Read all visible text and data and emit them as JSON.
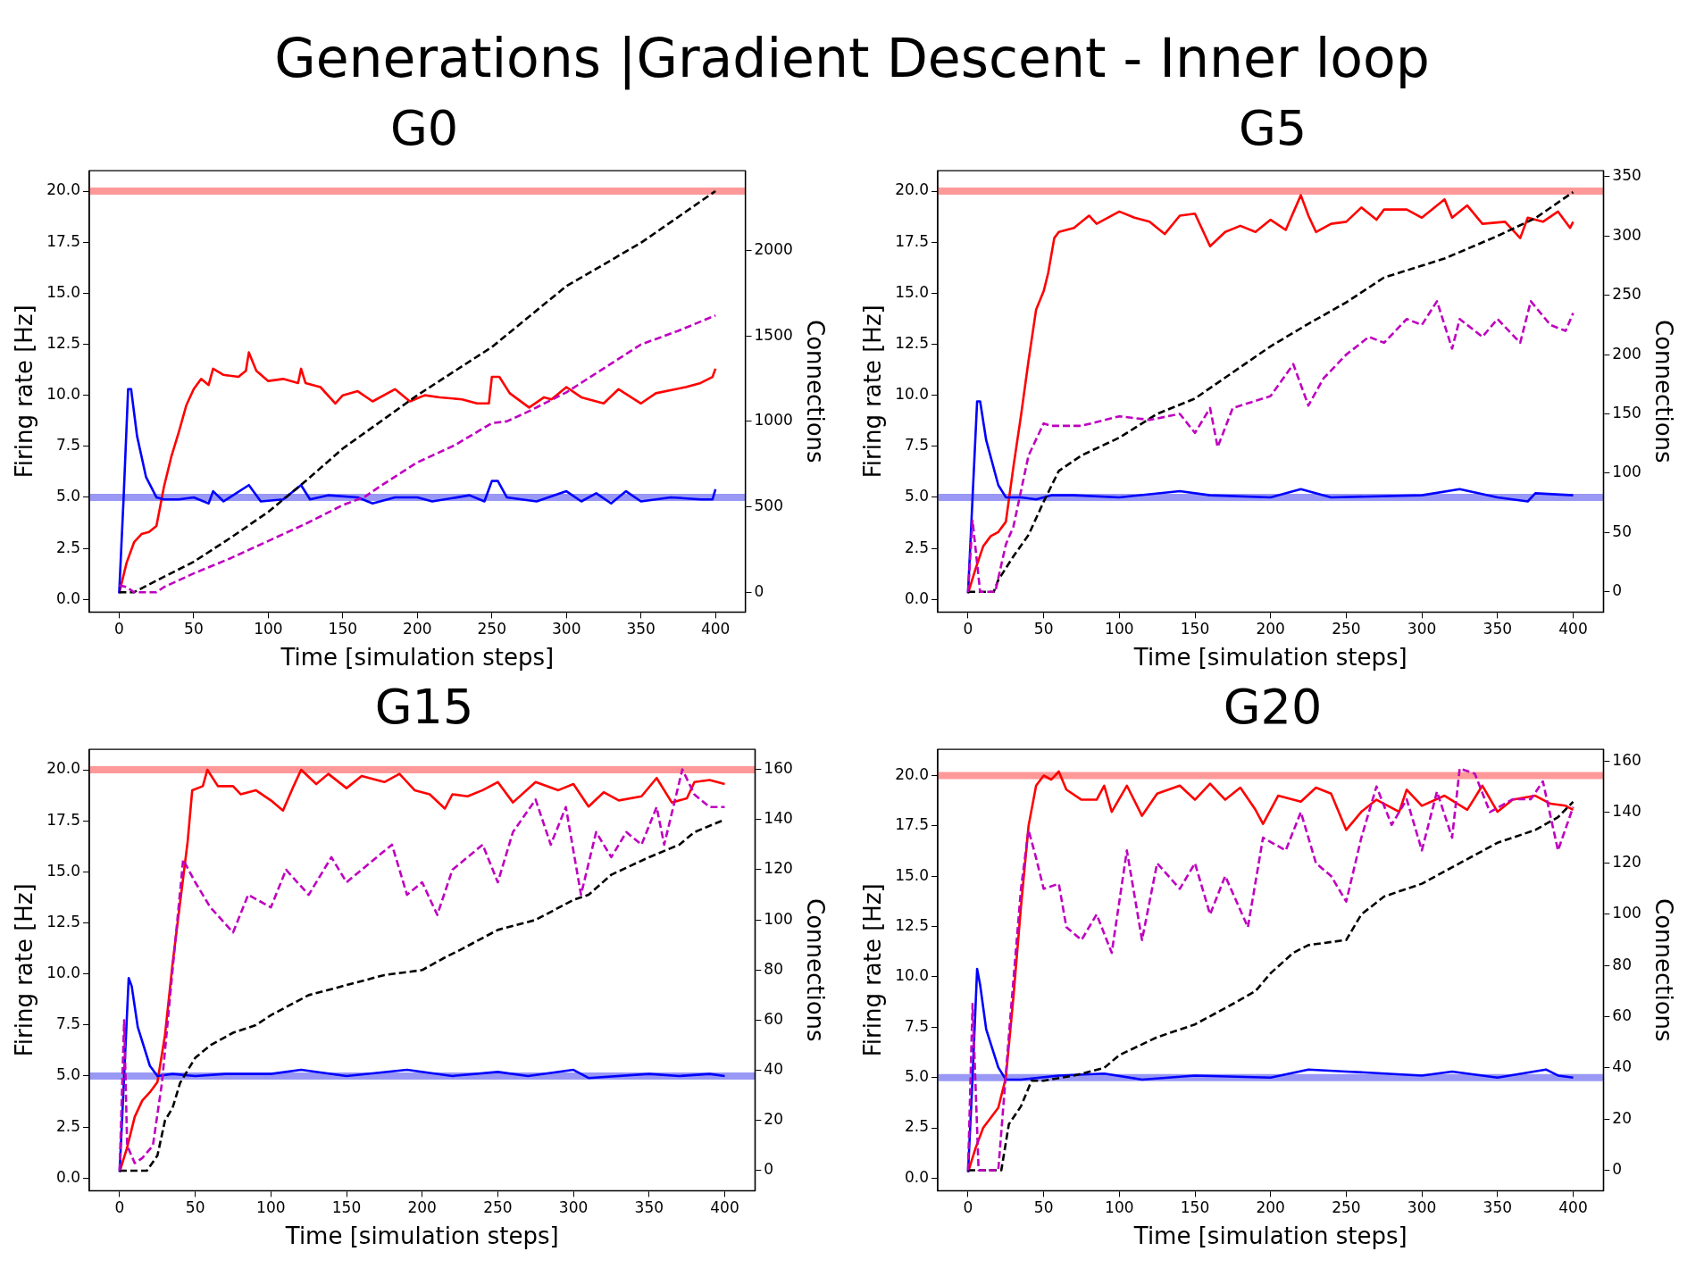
{
  "chart_data": [
    {
      "type": "line",
      "title": "Generations |Gradient Descent - Inner loop",
      "subtitle": "G0",
      "xlabel": "Time [simulation steps]",
      "ylabel": "Firing rate [Hz]",
      "y2label": "Connections",
      "xlim": [
        -20,
        420
      ],
      "xticks": [
        0,
        50,
        100,
        150,
        200,
        250,
        300,
        350,
        400
      ],
      "ylim": [
        -0.62,
        21.0
      ],
      "yticks": [
        {
          "value": 0,
          "label": "0.0"
        },
        {
          "value": 2.5,
          "label": "2.5"
        },
        {
          "value": 5,
          "label": "5.0"
        },
        {
          "value": 7.5,
          "label": "7.5"
        },
        {
          "value": 10,
          "label": "10.0"
        },
        {
          "value": 12.5,
          "label": "12.5"
        },
        {
          "value": 15,
          "label": "15.0"
        },
        {
          "value": 17.5,
          "label": "17.5"
        },
        {
          "value": 20,
          "label": "20.0"
        }
      ],
      "y2lim": [
        -116,
        2467
      ],
      "y2ticks": [
        0,
        500,
        1000,
        1500,
        2000
      ],
      "grid": false,
      "legend": false,
      "marker": "none",
      "ref_lines": [
        {
          "axis": "y",
          "value": 20,
          "color": "#ff9999"
        },
        {
          "axis": "y",
          "value": 5,
          "color": "#9999f5"
        }
      ],
      "series": [
        {
          "color": "#ff0000",
          "line_style": "solid",
          "x": [
            0,
            5,
            10,
            15,
            20,
            25,
            30,
            35,
            40,
            45,
            50,
            55,
            60,
            63,
            70,
            80,
            85,
            87,
            92,
            100,
            110,
            120,
            122,
            125,
            135,
            145,
            150,
            160,
            170,
            185,
            195,
            205,
            215,
            230,
            240,
            248,
            250,
            255,
            262,
            275,
            285,
            290,
            300,
            310,
            325,
            335,
            350,
            360,
            380,
            390,
            398,
            400
          ],
          "values": [
            0.3,
            1.8,
            2.8,
            3.2,
            3.3,
            3.6,
            5.5,
            7.0,
            8.2,
            9.5,
            10.3,
            10.8,
            10.5,
            11.3,
            11.0,
            10.9,
            11.2,
            12.1,
            11.2,
            10.7,
            10.8,
            10.6,
            11.3,
            10.6,
            10.4,
            9.6,
            10.0,
            10.2,
            9.7,
            10.3,
            9.7,
            10.0,
            9.9,
            9.8,
            9.6,
            9.6,
            10.9,
            10.9,
            10.1,
            9.4,
            9.9,
            9.8,
            10.4,
            9.9,
            9.6,
            10.3,
            9.6,
            10.1,
            10.4,
            10.6,
            10.9,
            11.3
          ]
        },
        {
          "color": "#0000ff",
          "line_style": "solid",
          "x": [
            0,
            3,
            6,
            8,
            12,
            18,
            25,
            30,
            40,
            50,
            60,
            63,
            70,
            87,
            95,
            110,
            122,
            128,
            140,
            160,
            170,
            185,
            200,
            210,
            235,
            245,
            250,
            254,
            260,
            280,
            300,
            310,
            320,
            330,
            340,
            350,
            370,
            390,
            398,
            400
          ],
          "values": [
            0.3,
            5.0,
            10.3,
            10.3,
            8.0,
            6.0,
            5.0,
            4.9,
            4.9,
            5.0,
            4.7,
            5.3,
            4.8,
            5.6,
            4.8,
            4.9,
            5.6,
            4.9,
            5.1,
            5.0,
            4.7,
            5.0,
            5.0,
            4.8,
            5.1,
            4.8,
            5.8,
            5.8,
            5.0,
            4.8,
            5.3,
            4.8,
            5.2,
            4.7,
            5.3,
            4.8,
            5.0,
            4.9,
            4.9,
            5.4
          ]
        },
        {
          "color": "#000000",
          "line_style": "dashed",
          "axis": "y2",
          "x": [
            0,
            10,
            25,
            50,
            75,
            100,
            125,
            150,
            200,
            250,
            300,
            350,
            400
          ],
          "values": [
            0,
            0,
            68,
            178,
            320,
            470,
            650,
            841,
            1153,
            1435,
            1792,
            2045,
            2348
          ]
        },
        {
          "color": "#bf00bf",
          "line_style": "dashed",
          "axis": "y2",
          "x": [
            0,
            5,
            10,
            25,
            30,
            50,
            75,
            100,
            125,
            150,
            165,
            175,
            200,
            225,
            250,
            260,
            275,
            300,
            325,
            350,
            375,
            400
          ],
          "values": [
            40,
            30,
            0,
            0,
            30,
            110,
            200,
            300,
            400,
            510,
            560,
            620,
            760,
            860,
            990,
            1000,
            1060,
            1170,
            1310,
            1450,
            1530,
            1620
          ]
        }
      ]
    },
    {
      "type": "line",
      "title": "G5",
      "xlabel": "Time [simulation steps]",
      "ylabel": "Firing rate [Hz]",
      "y2label": "Connections",
      "xlim": [
        -20,
        420
      ],
      "xticks": [
        0,
        50,
        100,
        150,
        200,
        250,
        300,
        350,
        400
      ],
      "ylim": [
        -0.62,
        21.0
      ],
      "yticks": [
        {
          "value": 0,
          "label": "0.0"
        },
        {
          "value": 2.5,
          "label": "2.5"
        },
        {
          "value": 5,
          "label": "5.0"
        },
        {
          "value": 7.5,
          "label": "7.5"
        },
        {
          "value": 10,
          "label": "10.0"
        },
        {
          "value": 12.5,
          "label": "12.5"
        },
        {
          "value": 15,
          "label": "15.0"
        },
        {
          "value": 17.5,
          "label": "17.5"
        },
        {
          "value": 20,
          "label": "20.0"
        }
      ],
      "y2lim": [
        -17,
        355
      ],
      "y2ticks": [
        0,
        50,
        100,
        150,
        200,
        250,
        300,
        350
      ],
      "grid": false,
      "legend": false,
      "marker": "none",
      "ref_lines": [
        {
          "axis": "y",
          "value": 20,
          "color": "#ff9999"
        },
        {
          "axis": "y",
          "value": 5,
          "color": "#9999f5"
        }
      ],
      "series": [
        {
          "color": "#ff0000",
          "line_style": "solid",
          "x": [
            0,
            5,
            10,
            15,
            20,
            25,
            30,
            35,
            40,
            45,
            50,
            53,
            57,
            60,
            70,
            80,
            85,
            100,
            110,
            120,
            130,
            140,
            150,
            160,
            170,
            180,
            190,
            200,
            210,
            220,
            225,
            230,
            240,
            250,
            260,
            270,
            275,
            290,
            300,
            315,
            320,
            330,
            340,
            355,
            365,
            370,
            380,
            390,
            398,
            400
          ],
          "values": [
            0.3,
            1.5,
            2.6,
            3.1,
            3.3,
            3.8,
            6.5,
            9.0,
            11.7,
            14.2,
            15.1,
            16.0,
            17.7,
            18.0,
            18.2,
            18.8,
            18.4,
            19.0,
            18.7,
            18.5,
            17.9,
            18.8,
            18.9,
            17.3,
            18.0,
            18.3,
            18.0,
            18.6,
            18.1,
            19.8,
            18.8,
            18.0,
            18.4,
            18.5,
            19.2,
            18.6,
            19.1,
            19.1,
            18.7,
            19.6,
            18.7,
            19.3,
            18.4,
            18.5,
            17.7,
            18.7,
            18.5,
            19.0,
            18.2,
            18.5
          ]
        },
        {
          "color": "#0000ff",
          "line_style": "solid",
          "x": [
            0,
            3,
            6,
            8,
            12,
            20,
            25,
            35,
            45,
            55,
            70,
            100,
            140,
            160,
            200,
            220,
            240,
            300,
            325,
            350,
            370,
            375,
            400
          ],
          "values": [
            0.3,
            5.0,
            9.7,
            9.7,
            7.8,
            5.6,
            5.0,
            5.0,
            4.9,
            5.1,
            5.1,
            5.0,
            5.3,
            5.1,
            5.0,
            5.4,
            5.0,
            5.1,
            5.4,
            5.0,
            4.8,
            5.2,
            5.1
          ]
        },
        {
          "color": "#000000",
          "line_style": "dashed",
          "axis": "y2",
          "x": [
            0,
            17,
            20,
            30,
            40,
            50,
            60,
            75,
            100,
            125,
            150,
            175,
            200,
            225,
            250,
            275,
            300,
            315,
            350,
            375,
            400
          ],
          "values": [
            0,
            0,
            10,
            30,
            48,
            76,
            102,
            115,
            130,
            150,
            163,
            185,
            207,
            226,
            244,
            265,
            275,
            281,
            300,
            315,
            337
          ]
        },
        {
          "color": "#bf00bf",
          "line_style": "dashed",
          "axis": "y2",
          "x": [
            0,
            3,
            8,
            18,
            25,
            30,
            40,
            50,
            55,
            75,
            100,
            120,
            140,
            150,
            160,
            165,
            175,
            200,
            215,
            225,
            235,
            250,
            265,
            275,
            290,
            300,
            310,
            320,
            325,
            340,
            350,
            365,
            372,
            385,
            395,
            400
          ],
          "values": [
            0,
            60,
            0,
            0,
            40,
            55,
            115,
            142,
            140,
            140,
            148,
            145,
            150,
            134,
            155,
            122,
            155,
            165,
            192,
            157,
            180,
            200,
            215,
            210,
            230,
            225,
            245,
            205,
            230,
            215,
            230,
            210,
            245,
            225,
            220,
            235
          ]
        }
      ]
    },
    {
      "type": "line",
      "title": "G15",
      "xlabel": "Time [simulation steps]",
      "ylabel": "Firing rate [Hz]",
      "y2label": "Connections",
      "xlim": [
        -20,
        420
      ],
      "xticks": [
        0,
        50,
        100,
        150,
        200,
        250,
        300,
        350,
        400
      ],
      "ylim": [
        -0.62,
        21.0
      ],
      "yticks": [
        {
          "value": 0,
          "label": "0.0"
        },
        {
          "value": 2.5,
          "label": "2.5"
        },
        {
          "value": 5,
          "label": "5.0"
        },
        {
          "value": 7.5,
          "label": "7.5"
        },
        {
          "value": 10,
          "label": "10.0"
        },
        {
          "value": 12.5,
          "label": "12.5"
        },
        {
          "value": 15,
          "label": "15.0"
        },
        {
          "value": 17.5,
          "label": "17.5"
        },
        {
          "value": 20,
          "label": "20.0"
        }
      ],
      "y2lim": [
        -8,
        168
      ],
      "y2ticks": [
        0,
        20,
        40,
        60,
        80,
        100,
        120,
        140,
        160
      ],
      "grid": false,
      "legend": false,
      "marker": "none",
      "ref_lines": [
        {
          "axis": "y",
          "value": 20,
          "color": "#ff9999"
        },
        {
          "axis": "y",
          "value": 5,
          "color": "#9999f5"
        }
      ],
      "series": [
        {
          "color": "#ff0000",
          "line_style": "solid",
          "x": [
            0,
            5,
            10,
            15,
            20,
            25,
            30,
            35,
            40,
            45,
            48,
            55,
            58,
            65,
            75,
            80,
            90,
            100,
            108,
            115,
            120,
            130,
            138,
            150,
            160,
            175,
            185,
            195,
            205,
            215,
            220,
            230,
            240,
            250,
            260,
            275,
            290,
            300,
            310,
            320,
            330,
            345,
            355,
            365,
            375,
            380,
            390,
            400
          ],
          "values": [
            0.3,
            1.5,
            3.0,
            3.8,
            4.2,
            4.7,
            7.0,
            10.5,
            13.5,
            16.5,
            19.0,
            19.2,
            20.0,
            19.2,
            19.2,
            18.8,
            19.0,
            18.5,
            18.0,
            19.2,
            20.0,
            19.3,
            19.8,
            19.1,
            19.7,
            19.4,
            19.8,
            19.0,
            18.8,
            18.1,
            18.8,
            18.7,
            19.0,
            19.4,
            18.4,
            19.4,
            19.0,
            19.3,
            18.2,
            18.9,
            18.5,
            18.7,
            19.6,
            18.4,
            18.6,
            19.4,
            19.5,
            19.3
          ]
        },
        {
          "color": "#0000ff",
          "line_style": "solid",
          "x": [
            0,
            3,
            6,
            8,
            12,
            20,
            25,
            35,
            50,
            70,
            100,
            120,
            150,
            190,
            220,
            250,
            270,
            300,
            310,
            350,
            370,
            390,
            400
          ],
          "values": [
            0.3,
            5.0,
            9.8,
            9.4,
            7.4,
            5.5,
            5.0,
            5.1,
            5.0,
            5.1,
            5.1,
            5.3,
            5.0,
            5.3,
            5.0,
            5.2,
            5.0,
            5.3,
            4.9,
            5.1,
            5.0,
            5.1,
            5.0
          ]
        },
        {
          "color": "#000000",
          "line_style": "dashed",
          "axis": "y2",
          "x": [
            0,
            18,
            25,
            30,
            35,
            40,
            50,
            60,
            75,
            90,
            100,
            125,
            150,
            175,
            200,
            215,
            225,
            250,
            275,
            300,
            310,
            325,
            350,
            370,
            380,
            400
          ],
          "values": [
            0,
            0,
            6,
            20,
            25,
            35,
            45,
            50,
            55,
            58,
            62,
            70,
            74,
            78,
            80,
            85,
            88,
            96,
            100,
            108,
            110,
            118,
            125,
            130,
            135,
            140
          ]
        },
        {
          "color": "#bf00bf",
          "line_style": "dashed",
          "axis": "y2",
          "x": [
            0,
            3,
            5,
            10,
            15,
            22,
            28,
            35,
            42,
            50,
            60,
            75,
            85,
            100,
            110,
            125,
            140,
            150,
            170,
            180,
            190,
            200,
            210,
            220,
            240,
            250,
            260,
            275,
            285,
            295,
            305,
            315,
            325,
            335,
            345,
            355,
            360,
            372,
            380,
            390,
            400
          ],
          "values": [
            0,
            60,
            10,
            3,
            5,
            10,
            35,
            80,
            124,
            115,
            105,
            95,
            110,
            105,
            120,
            110,
            125,
            115,
            125,
            130,
            110,
            115,
            102,
            120,
            130,
            115,
            135,
            148,
            130,
            145,
            110,
            135,
            125,
            135,
            130,
            145,
            130,
            160,
            150,
            145,
            145
          ]
        }
      ]
    },
    {
      "type": "line",
      "title": "G20",
      "xlabel": "Time [simulation steps]",
      "ylabel": "Firing rate [Hz]",
      "y2label": "Connections",
      "xlim": [
        -20,
        420
      ],
      "xticks": [
        0,
        50,
        100,
        150,
        200,
        250,
        300,
        350,
        400
      ],
      "ylim": [
        -0.62,
        21.3
      ],
      "yticks": [
        {
          "value": 0,
          "label": "0.0"
        },
        {
          "value": 2.5,
          "label": "2.5"
        },
        {
          "value": 5,
          "label": "5.0"
        },
        {
          "value": 7.5,
          "label": "7.5"
        },
        {
          "value": 10,
          "label": "10.0"
        },
        {
          "value": 12.5,
          "label": "12.5"
        },
        {
          "value": 15,
          "label": "15.0"
        },
        {
          "value": 17.5,
          "label": "17.5"
        },
        {
          "value": 20,
          "label": "20.0"
        }
      ],
      "y2lim": [
        -8,
        164.5
      ],
      "y2ticks": [
        0,
        20,
        40,
        60,
        80,
        100,
        120,
        140,
        160
      ],
      "grid": false,
      "legend": false,
      "marker": "none",
      "ref_lines": [
        {
          "axis": "y",
          "value": 20,
          "color": "#ff9999"
        },
        {
          "axis": "y",
          "value": 5,
          "color": "#9999f5"
        }
      ],
      "series": [
        {
          "color": "#ff0000",
          "line_style": "solid",
          "x": [
            0,
            5,
            10,
            15,
            20,
            25,
            30,
            35,
            40,
            45,
            50,
            55,
            60,
            65,
            75,
            85,
            90,
            95,
            105,
            115,
            125,
            140,
            150,
            160,
            170,
            180,
            190,
            195,
            205,
            220,
            230,
            240,
            250,
            260,
            270,
            285,
            290,
            300,
            315,
            330,
            340,
            350,
            360,
            375,
            385,
            395,
            400
          ],
          "values": [
            0.3,
            1.5,
            2.5,
            3.0,
            3.5,
            5.0,
            9.0,
            13.5,
            17.5,
            19.5,
            20.0,
            19.8,
            20.2,
            19.3,
            18.8,
            18.8,
            19.5,
            18.2,
            19.5,
            18.0,
            19.1,
            19.5,
            18.8,
            19.6,
            18.8,
            19.4,
            18.3,
            17.6,
            19.0,
            18.7,
            19.4,
            19.1,
            17.3,
            18.2,
            18.8,
            18.2,
            19.3,
            18.5,
            19.0,
            18.3,
            19.5,
            18.2,
            18.8,
            19.0,
            18.6,
            18.5,
            18.3
          ]
        },
        {
          "color": "#0000ff",
          "line_style": "solid",
          "x": [
            0,
            3,
            6,
            8,
            12,
            20,
            25,
            35,
            60,
            90,
            115,
            150,
            200,
            225,
            250,
            300,
            320,
            350,
            382,
            390,
            400
          ],
          "values": [
            0.3,
            5.0,
            10.4,
            9.6,
            7.4,
            5.5,
            4.9,
            4.9,
            5.1,
            5.2,
            4.9,
            5.1,
            5.0,
            5.4,
            5.3,
            5.1,
            5.3,
            5.0,
            5.4,
            5.1,
            5.0
          ]
        },
        {
          "color": "#000000",
          "line_style": "dashed",
          "axis": "y2",
          "x": [
            0,
            22,
            27,
            35,
            42,
            50,
            70,
            90,
            100,
            125,
            150,
            175,
            190,
            200,
            215,
            225,
            250,
            260,
            275,
            300,
            325,
            350,
            375,
            390,
            400
          ],
          "values": [
            0,
            0,
            18,
            25,
            35,
            35,
            37,
            40,
            45,
            52,
            57,
            65,
            70,
            77,
            85,
            88,
            90,
            100,
            107,
            112,
            120,
            128,
            133,
            138,
            144
          ]
        },
        {
          "color": "#bf00bf",
          "line_style": "dashed",
          "axis": "y2",
          "x": [
            0,
            3,
            7,
            20,
            28,
            35,
            40,
            45,
            50,
            60,
            65,
            75,
            85,
            95,
            105,
            115,
            125,
            140,
            150,
            160,
            170,
            185,
            195,
            210,
            220,
            230,
            240,
            250,
            260,
            270,
            280,
            290,
            300,
            310,
            320,
            325,
            335,
            345,
            360,
            372,
            380,
            390,
            400
          ],
          "values": [
            0,
            65,
            0,
            0,
            60,
            110,
            133,
            122,
            110,
            112,
            95,
            90,
            100,
            85,
            125,
            90,
            120,
            110,
            120,
            100,
            115,
            95,
            130,
            125,
            140,
            120,
            115,
            105,
            130,
            150,
            135,
            145,
            125,
            148,
            130,
            157,
            155,
            140,
            145,
            145,
            152,
            125,
            142
          ]
        }
      ]
    }
  ]
}
